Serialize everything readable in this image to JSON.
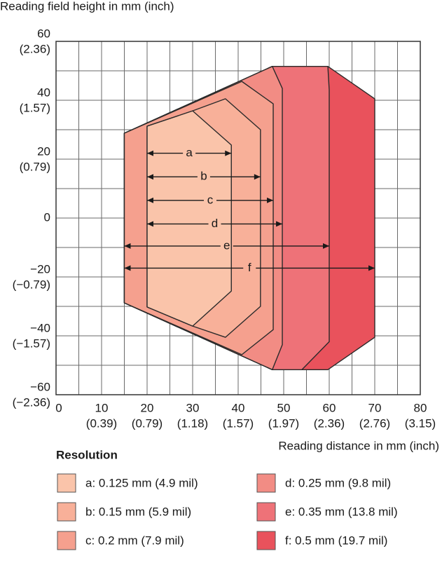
{
  "chart_data": {
    "type": "polygon",
    "y_label": "Reading field height in mm (inch)",
    "x_label": "Reading distance in mm (inch)",
    "legend_title": "Resolution",
    "xlim": [
      0,
      80
    ],
    "ylim": [
      -60,
      60
    ],
    "xticks": [
      0,
      10,
      20,
      30,
      40,
      50,
      60,
      70,
      80
    ],
    "xtick_inch_labels": [
      null,
      "(0.39)",
      "(0.79)",
      "(1.18)",
      "(1.57)",
      "(1.97)",
      "(2.36)",
      "(2.76)",
      "(3.15)"
    ],
    "xminor": [
      5,
      15,
      25,
      35,
      45,
      55,
      65,
      75
    ],
    "yticks": [
      {
        "value": -60,
        "label": "−60"
      },
      {
        "value": -40,
        "label": "−40"
      },
      {
        "value": -20,
        "label": "−20"
      },
      0,
      20,
      40,
      60
    ],
    "ytick_inch_labels": [
      "(−2.36)",
      "(−1.57)",
      "(−0.79)",
      null,
      "(0.79)",
      "(1.57)",
      "(2.36)"
    ],
    "yminor": [
      -50,
      -30,
      -10,
      10,
      30,
      50
    ],
    "grid": true,
    "series": [
      {
        "name": "f: 0.5 mm (19.7 mil)",
        "color": "#e9525c",
        "x": [
          15,
          47.5,
          59.7,
          70,
          70,
          59.7,
          47.5,
          15
        ],
        "y": [
          28.8,
          51.5,
          51.5,
          40.5,
          -40.5,
          -51.5,
          -51.5,
          -28.8
        ]
      },
      {
        "name": "e: 0.35 mm (13.8 mil)",
        "color": "#ee7278",
        "x": [
          15,
          47.5,
          59.7,
          60,
          60,
          54,
          47.5,
          15
        ],
        "y": [
          28.8,
          51.5,
          51.5,
          43.5,
          -42,
          -51.5,
          -51.5,
          -28.8
        ]
      },
      {
        "name": "d: 0.25 mm (9.8 mil)",
        "color": "#f28c84",
        "x": [
          15,
          47.5,
          49.7,
          49.7,
          47.5,
          15
        ],
        "y": [
          28.8,
          51.5,
          44,
          -43,
          -51.5,
          -28.8
        ]
      },
      {
        "name": "c: 0.2 mm (7.9 mil)",
        "color": "#f5a08e",
        "x": [
          15,
          40.8,
          47.7,
          47.7,
          40.8,
          15
        ],
        "y": [
          28.8,
          46.4,
          38.8,
          -37.9,
          -46.4,
          -28.8
        ]
      },
      {
        "name": "b: 0.15 mm (5.9 mil)",
        "color": "#f8b099",
        "x": [
          20,
          30,
          37.2,
          44.9,
          44.9,
          37.2,
          30,
          20
        ],
        "y": [
          31.2,
          36.4,
          40.5,
          30,
          -30,
          -40.5,
          -36.7,
          -30.2
        ]
      },
      {
        "name": "a: 0.125 mm (4.9 mil)",
        "color": "#fac4aa",
        "x": [
          20,
          30,
          38.5,
          38.5,
          30,
          20
        ],
        "y": [
          31.2,
          36.4,
          24.8,
          -24.8,
          -36.7,
          -30.2
        ]
      }
    ],
    "annotations": [
      {
        "label": "a",
        "x": [
          20,
          38.5
        ],
        "y": 22
      },
      {
        "label": "b",
        "x": [
          20,
          44.9
        ],
        "y": 14
      },
      {
        "label": "c",
        "x": [
          20,
          47.7
        ],
        "y": 6
      },
      {
        "label": "d",
        "x": [
          20,
          49.7
        ],
        "y": -2
      },
      {
        "label": "e",
        "x": [
          15,
          60
        ],
        "y": -9.5
      },
      {
        "label": "f",
        "x": [
          15,
          70
        ],
        "y": -17
      }
    ]
  }
}
